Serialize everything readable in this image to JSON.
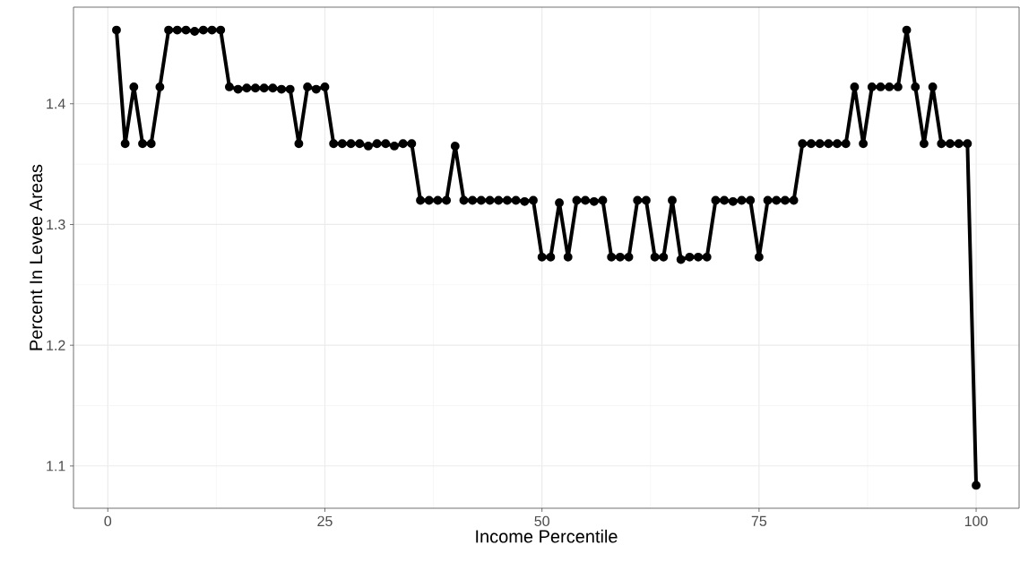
{
  "chart_data": {
    "type": "line",
    "xlabel": "Income Percentile",
    "ylabel": "Percent In Levee Areas",
    "x": [
      1,
      2,
      3,
      4,
      5,
      6,
      7,
      8,
      9,
      10,
      11,
      12,
      13,
      14,
      15,
      16,
      17,
      18,
      19,
      20,
      21,
      22,
      23,
      24,
      25,
      26,
      27,
      28,
      29,
      30,
      31,
      32,
      33,
      34,
      35,
      36,
      37,
      38,
      39,
      40,
      41,
      42,
      43,
      44,
      45,
      46,
      47,
      48,
      49,
      50,
      51,
      52,
      53,
      54,
      55,
      56,
      57,
      58,
      59,
      60,
      61,
      62,
      63,
      64,
      65,
      66,
      67,
      68,
      69,
      70,
      71,
      72,
      73,
      74,
      75,
      76,
      77,
      78,
      79,
      80,
      81,
      82,
      83,
      84,
      85,
      86,
      87,
      88,
      89,
      90,
      91,
      92,
      93,
      94,
      95,
      96,
      97,
      98,
      99,
      100
    ],
    "series": [
      {
        "color": "#000000",
        "values": [
          1.461,
          1.367,
          1.414,
          1.367,
          1.367,
          1.414,
          1.461,
          1.461,
          1.461,
          1.46,
          1.461,
          1.461,
          1.461,
          1.414,
          1.412,
          1.413,
          1.413,
          1.413,
          1.413,
          1.412,
          1.412,
          1.367,
          1.414,
          1.412,
          1.414,
          1.367,
          1.367,
          1.367,
          1.367,
          1.365,
          1.367,
          1.367,
          1.365,
          1.367,
          1.367,
          1.32,
          1.32,
          1.32,
          1.32,
          1.365,
          1.32,
          1.32,
          1.32,
          1.32,
          1.32,
          1.32,
          1.32,
          1.319,
          1.32,
          1.273,
          1.273,
          1.318,
          1.273,
          1.32,
          1.32,
          1.319,
          1.32,
          1.273,
          1.273,
          1.273,
          1.32,
          1.32,
          1.273,
          1.273,
          1.32,
          1.271,
          1.273,
          1.273,
          1.273,
          1.32,
          1.32,
          1.319,
          1.32,
          1.32,
          1.273,
          1.32,
          1.32,
          1.32,
          1.32,
          1.367,
          1.367,
          1.367,
          1.367,
          1.367,
          1.367,
          1.414,
          1.367,
          1.414,
          1.414,
          1.414,
          1.414,
          1.461,
          1.414,
          1.367,
          1.414,
          1.367,
          1.367,
          1.367,
          1.367,
          1.084
        ]
      }
    ],
    "xlim": [
      -3.95,
      104.95
    ],
    "ylim": [
      1.065,
      1.48
    ],
    "xticks": [
      0,
      25,
      50,
      75,
      100
    ],
    "yticks": [
      1.1,
      1.2,
      1.3,
      1.4
    ],
    "grid": true,
    "marker": "circle",
    "line_style": "solid"
  }
}
